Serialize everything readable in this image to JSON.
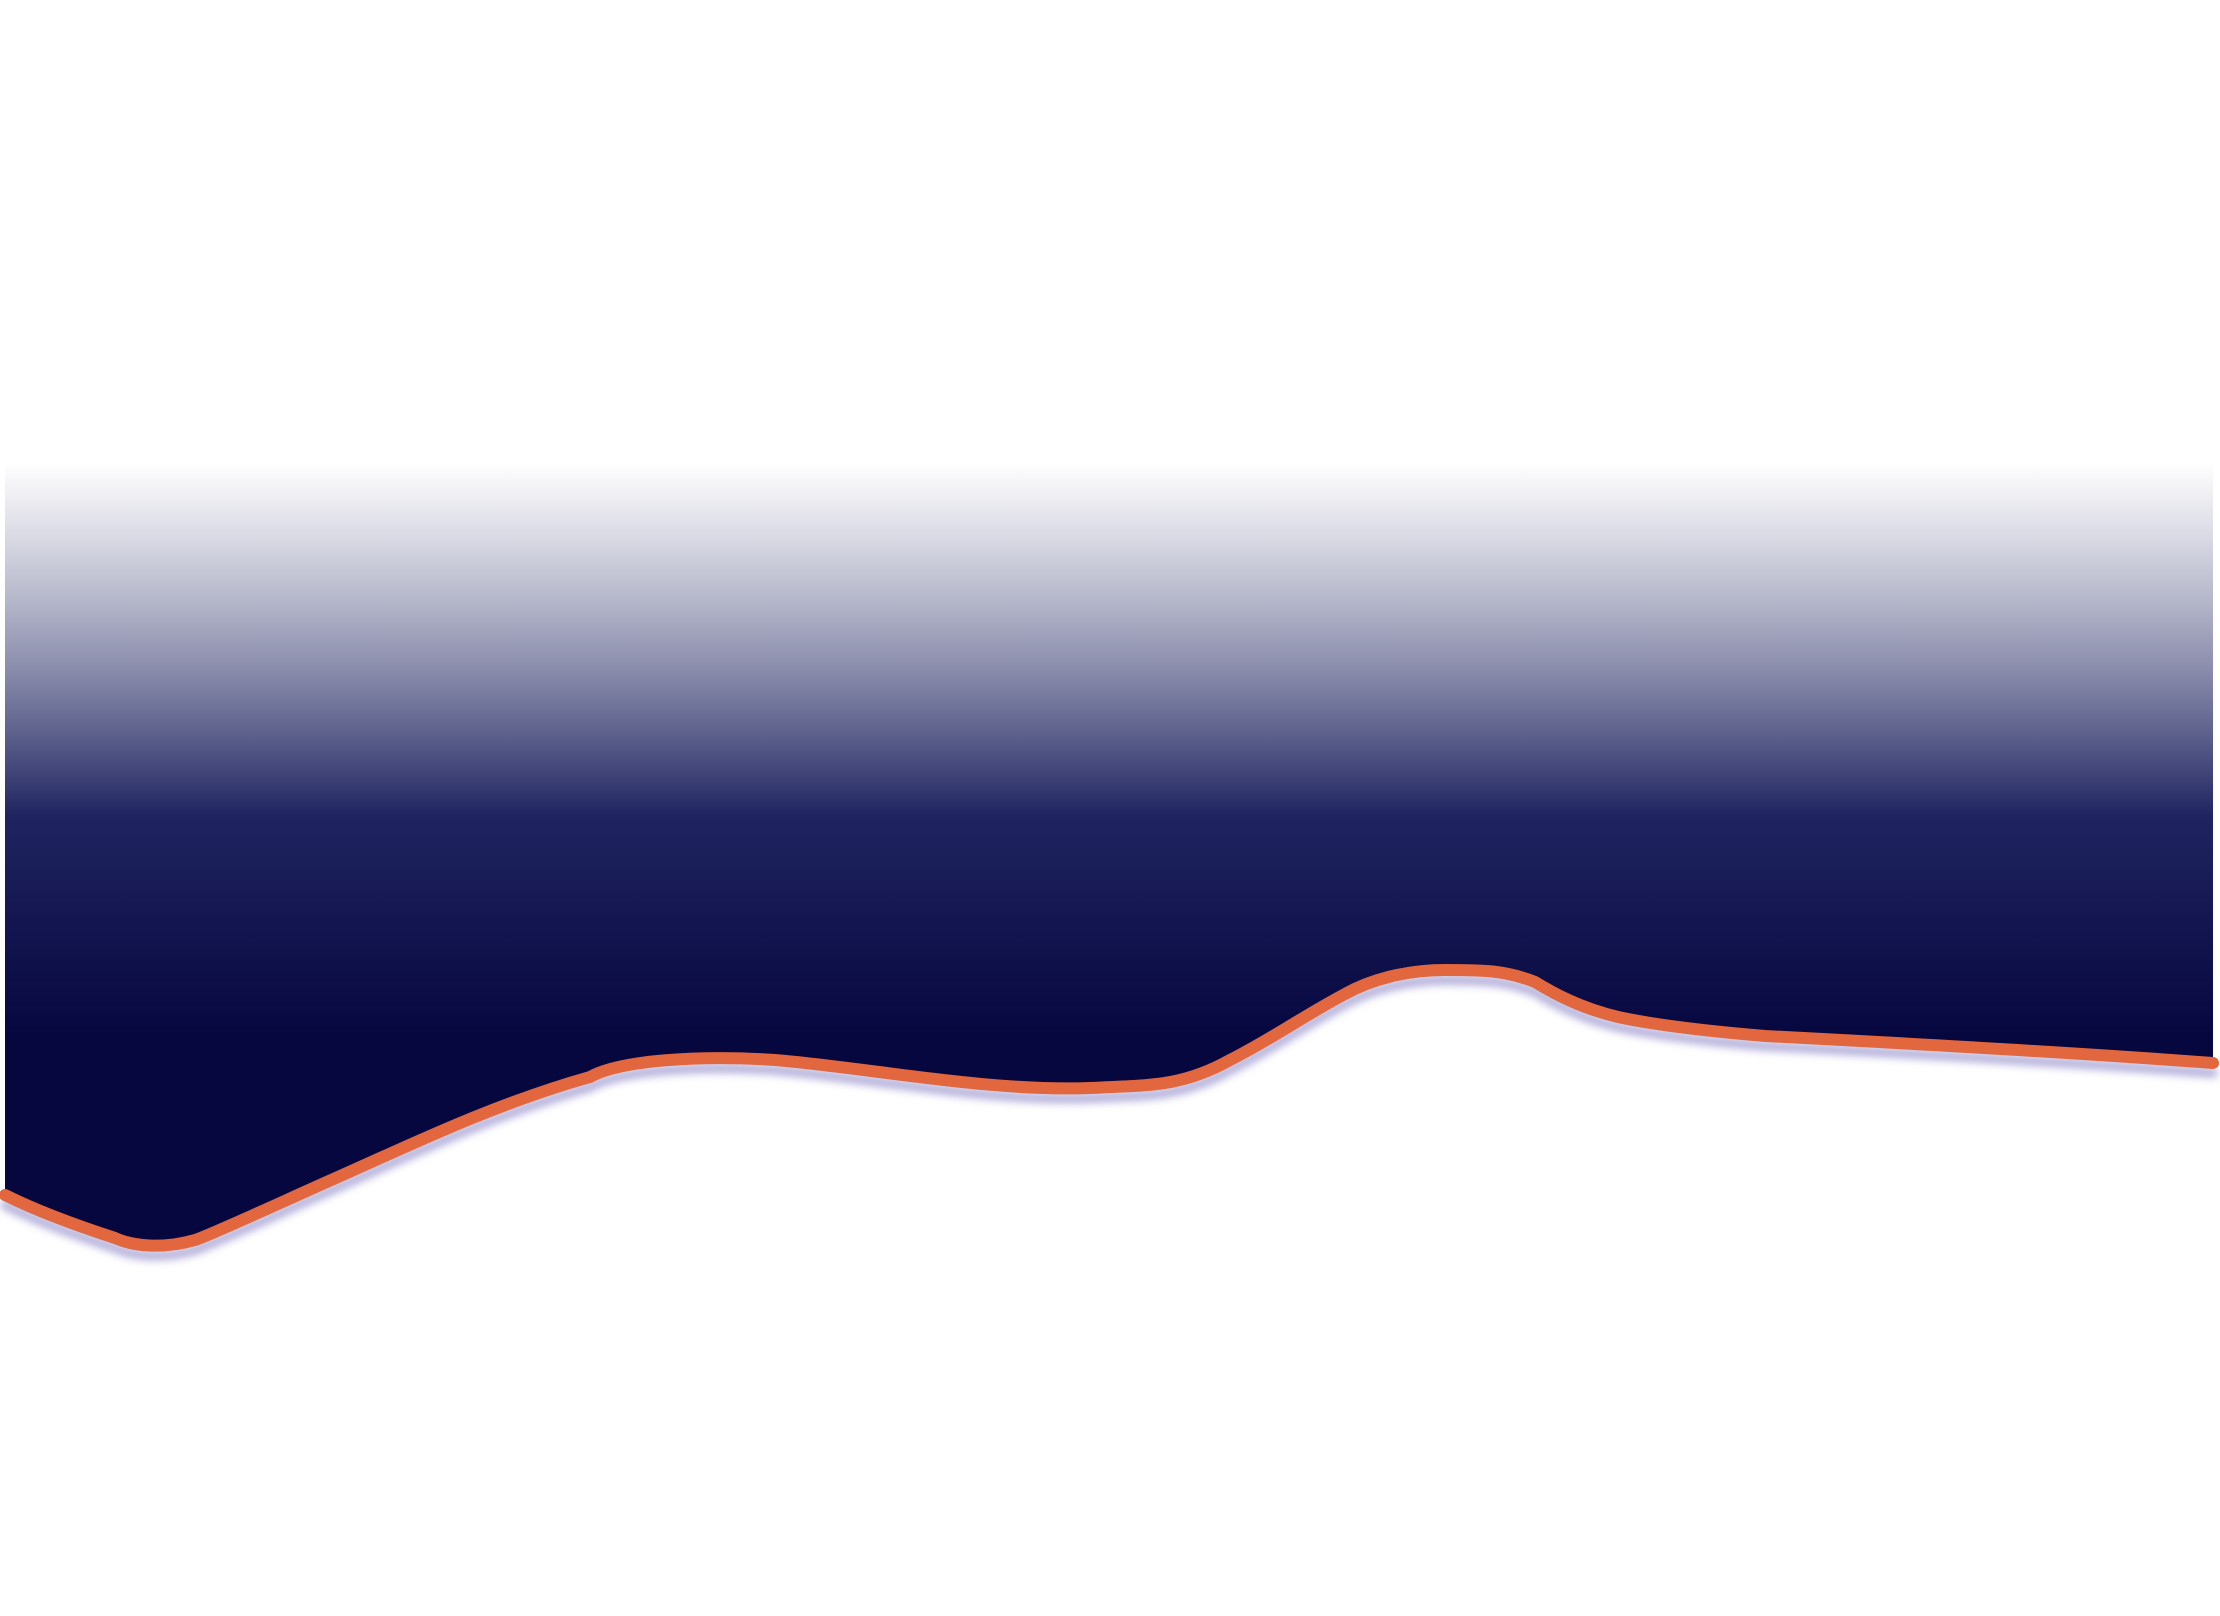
{
  "graphic": {
    "background_color": "#ffffff",
    "gradient_top_color": "#ffffff",
    "gradient_mid_color": "#1f2460",
    "gradient_bottom_color": "#070740",
    "edge_stroke_color": "#e2673f",
    "edge_shadow_color": "#8f88c8"
  }
}
